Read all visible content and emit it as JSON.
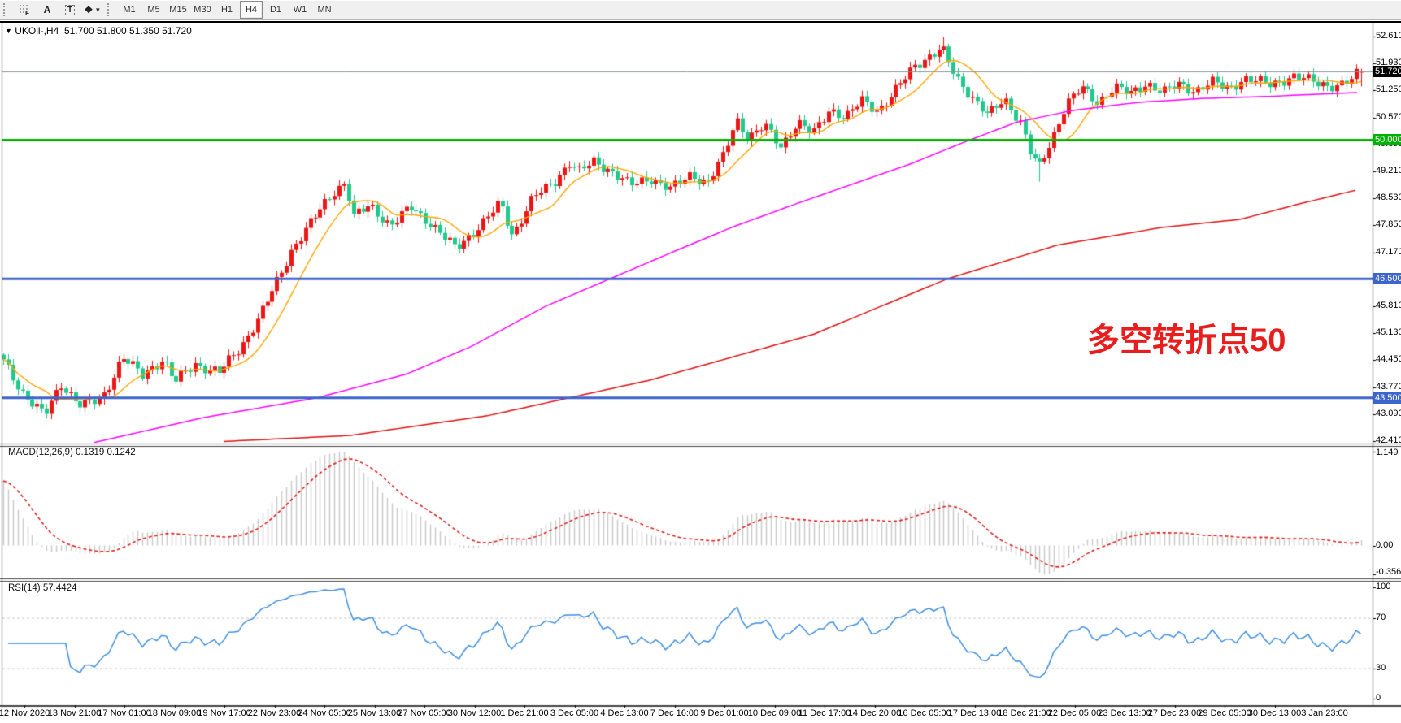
{
  "toolbar": {
    "tools": [
      {
        "name": "fibonacci-tool",
        "label": "F"
      },
      {
        "name": "text-tool",
        "label": "A"
      },
      {
        "name": "text-label-tool",
        "label": "T"
      },
      {
        "name": "arrows-tool",
        "label": "❖"
      }
    ],
    "timeframes": [
      "M1",
      "M5",
      "M15",
      "M30",
      "H1",
      "H4",
      "D1",
      "W1",
      "MN"
    ],
    "active_timeframe": "H4"
  },
  "header": {
    "collapse_glyph": "▼",
    "symbol": "UKOil-,H4",
    "open": "51.700",
    "high": "51.800",
    "low": "51.350",
    "close": "51.720"
  },
  "annotation": {
    "text": "多空转折点50",
    "color": "#e81e1e"
  },
  "price_axis": {
    "ticks": [
      "52.610",
      "51.930",
      "51.250",
      "50.570",
      "49.890",
      "49.210",
      "48.530",
      "47.850",
      "47.170",
      "45.810",
      "45.130",
      "44.450",
      "43.770",
      "43.090",
      "42.410"
    ]
  },
  "hlines": [
    {
      "price": 51.72,
      "label": "51.720",
      "color": "#87909f",
      "line_width": 1,
      "label_bg": "#000000"
    },
    {
      "price": 50.0,
      "label": "50.000",
      "color": "#00b300",
      "line_width": 3,
      "label_bg": "#00b300"
    },
    {
      "price": 46.5,
      "label": "46.500",
      "color": "#3c64cd",
      "line_width": 3,
      "label_bg": "#3c64cd"
    },
    {
      "price": 43.5,
      "label": "43.500",
      "color": "#3c64cd",
      "line_width": 3,
      "label_bg": "#3c64cd"
    }
  ],
  "macd": {
    "label": "MACD(12,26,9)",
    "value_main": "0.1319",
    "value_signal": "0.1242",
    "axis_max": "1.149",
    "axis_zero": "0.00",
    "axis_min": "-0.3563",
    "max": 1.149,
    "min": -0.3563,
    "fast": 12,
    "slow": 26,
    "signal": 9
  },
  "rsi": {
    "label": "RSI(14)",
    "value": "57.4424",
    "period": 14,
    "axis": [
      "100",
      "70",
      "30",
      "0"
    ],
    "levels": [
      70,
      30
    ]
  },
  "time_axis": {
    "labels": [
      "12 Nov 2020",
      "13 Nov 21:00",
      "17 Nov 01:00",
      "18 Nov 09:00",
      "19 Nov 17:00",
      "22 Nov 23:00",
      "24 Nov 05:00",
      "25 Nov 13:00",
      "27 Nov 05:00",
      "30 Nov 12:00",
      "1 Dec 21:00",
      "3 Dec 05:00",
      "4 Dec 13:00",
      "7 Dec 16:00",
      "9 Dec 01:00",
      "10 Dec 09:00",
      "11 Dec 17:00",
      "14 Dec 20:00",
      "16 Dec 05:00",
      "17 Dec 13:00",
      "18 Dec 21:00",
      "22 Dec 05:00",
      "23 Dec 13:00",
      "27 Dec 23:00",
      "29 Dec 05:00",
      "30 Dec 13:00",
      "3 Jan 23:00"
    ]
  },
  "chart_data": {
    "type": "candlestick",
    "symbol": "UKOil-",
    "timeframe": "H4",
    "title": "UKOil-,H4 51.700 51.800 51.350 51.720",
    "current_ohlc": [
      51.7,
      51.8,
      51.35,
      51.72
    ],
    "price_range_visible": [
      42.41,
      52.61
    ],
    "bars": 284,
    "close_waypoints": [
      [
        0,
        44.55
      ],
      [
        25,
        43.7
      ],
      [
        55,
        43.05
      ],
      [
        75,
        43.85
      ],
      [
        100,
        43.3
      ],
      [
        125,
        43.45
      ],
      [
        150,
        44.55
      ],
      [
        175,
        44.05
      ],
      [
        200,
        44.5
      ],
      [
        215,
        43.9
      ],
      [
        240,
        44.35
      ],
      [
        270,
        44.15
      ],
      [
        295,
        44.75
      ],
      [
        320,
        45.6
      ],
      [
        340,
        46.4
      ],
      [
        360,
        47.3
      ],
      [
        385,
        48.0
      ],
      [
        410,
        48.7
      ],
      [
        425,
        48.95
      ],
      [
        434,
        48.05
      ],
      [
        455,
        48.35
      ],
      [
        480,
        47.85
      ],
      [
        505,
        48.3
      ],
      [
        530,
        47.9
      ],
      [
        560,
        47.25
      ],
      [
        590,
        47.85
      ],
      [
        615,
        48.4
      ],
      [
        630,
        47.6
      ],
      [
        655,
        48.55
      ],
      [
        680,
        48.9
      ],
      [
        700,
        49.45
      ],
      [
        712,
        49.2
      ],
      [
        730,
        49.45
      ],
      [
        750,
        49.25
      ],
      [
        775,
        48.85
      ],
      [
        800,
        49.05
      ],
      [
        825,
        48.75
      ],
      [
        850,
        49.15
      ],
      [
        870,
        48.9
      ],
      [
        890,
        49.6
      ],
      [
        905,
        50.55
      ],
      [
        920,
        50.05
      ],
      [
        940,
        50.35
      ],
      [
        960,
        49.85
      ],
      [
        980,
        50.45
      ],
      [
        1000,
        50.15
      ],
      [
        1020,
        50.8
      ],
      [
        1040,
        50.55
      ],
      [
        1060,
        51.0
      ],
      [
        1080,
        50.75
      ],
      [
        1100,
        51.2
      ],
      [
        1125,
        51.9
      ],
      [
        1158,
        52.3
      ],
      [
        1175,
        51.6
      ],
      [
        1195,
        51.1
      ],
      [
        1215,
        50.6
      ],
      [
        1235,
        51.05
      ],
      [
        1255,
        50.45
      ],
      [
        1268,
        49.6
      ],
      [
        1278,
        49.3
      ],
      [
        1295,
        50.1
      ],
      [
        1310,
        50.9
      ],
      [
        1330,
        51.3
      ],
      [
        1350,
        50.95
      ],
      [
        1370,
        51.35
      ],
      [
        1390,
        51.15
      ],
      [
        1410,
        51.45
      ],
      [
        1430,
        51.2
      ],
      [
        1450,
        51.4
      ],
      [
        1470,
        51.25
      ],
      [
        1490,
        51.45
      ],
      [
        1510,
        51.3
      ],
      [
        1530,
        51.55
      ],
      [
        1560,
        51.4
      ],
      [
        1590,
        51.6
      ],
      [
        1620,
        51.45
      ],
      [
        1645,
        51.35
      ],
      [
        1662,
        51.5
      ],
      [
        1670,
        51.72
      ]
    ],
    "wick_overrides": [
      {
        "bar": 196,
        "high": 52.6
      },
      {
        "bar": 216,
        "low": 48.95
      }
    ],
    "ma_fast_period": 10,
    "ma_mid_points": [
      [
        115,
        42.37
      ],
      [
        250,
        43.0
      ],
      [
        390,
        43.5
      ],
      [
        500,
        44.1
      ],
      [
        580,
        44.8
      ],
      [
        670,
        45.8
      ],
      [
        750,
        46.5
      ],
      [
        830,
        47.2
      ],
      [
        900,
        47.8
      ],
      [
        980,
        48.4
      ],
      [
        1050,
        48.9
      ],
      [
        1120,
        49.4
      ],
      [
        1180,
        49.9
      ],
      [
        1250,
        50.45
      ],
      [
        1320,
        50.75
      ],
      [
        1400,
        50.95
      ],
      [
        1480,
        51.05
      ],
      [
        1560,
        51.1
      ],
      [
        1670,
        51.2
      ]
    ],
    "ma_slow_points": [
      [
        275,
        42.4
      ],
      [
        430,
        42.55
      ],
      [
        600,
        43.05
      ],
      [
        800,
        43.95
      ],
      [
        1000,
        45.1
      ],
      [
        1165,
        46.5
      ],
      [
        1300,
        47.35
      ],
      [
        1430,
        47.8
      ],
      [
        1525,
        48.0
      ],
      [
        1600,
        48.4
      ],
      [
        1670,
        48.75
      ]
    ],
    "colors": {
      "up": "#ee1515",
      "down": "#22c98c",
      "ma_fast": "#ffa500",
      "ma_mid": "#ff00ff",
      "ma_slow": "#dd1111",
      "macd_hist": "#c8c8c8",
      "macd_signal": "#e02020",
      "rsi_line": "#3e8ede",
      "rsi_levels": "#c8c8c8"
    }
  }
}
